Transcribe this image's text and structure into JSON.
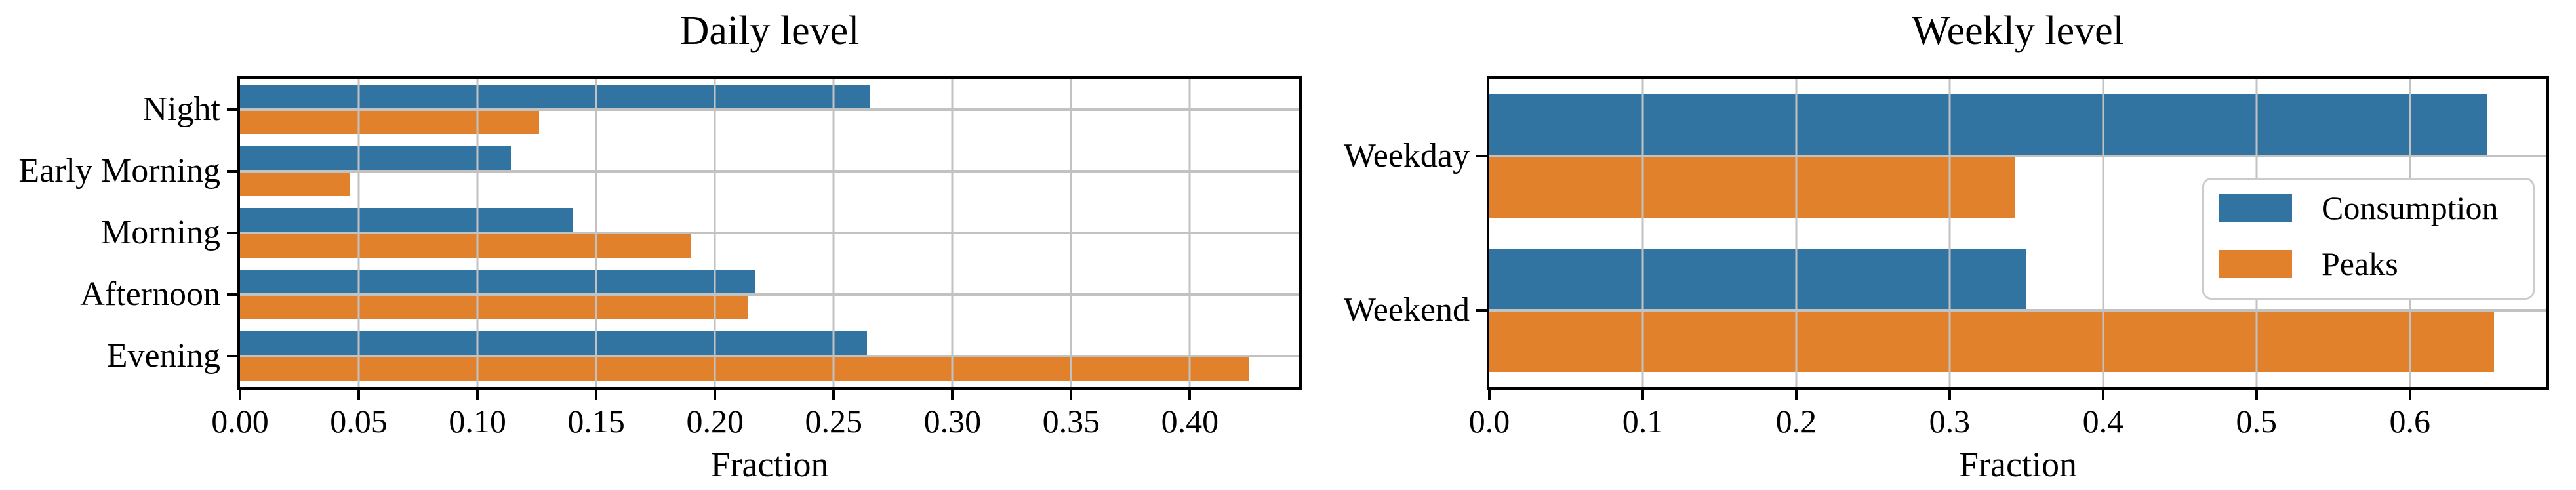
{
  "figure": {
    "background": "#ffffff",
    "text_color": "#000000",
    "grid_color": "#c2c2c2",
    "spine_color": "#000000",
    "legend_border_color": "#cccccc"
  },
  "legend": {
    "position": "lower-right-of-weekly-chart",
    "items": [
      {
        "label": "Consumption",
        "color": "#3274a1"
      },
      {
        "label": "Peaks",
        "color": "#e1812c"
      }
    ]
  },
  "chart_data": [
    {
      "id": "daily",
      "type": "bar",
      "orientation": "horizontal",
      "title": "Daily level",
      "xlabel": "Fraction",
      "categories": [
        "Night",
        "Early Morning",
        "Morning",
        "Afternoon",
        "Evening"
      ],
      "series": [
        {
          "name": "Consumption",
          "color": "#3274a1",
          "values": [
            0.265,
            0.114,
            0.14,
            0.217,
            0.264
          ]
        },
        {
          "name": "Peaks",
          "color": "#e1812c",
          "values": [
            0.126,
            0.046,
            0.19,
            0.214,
            0.425
          ]
        }
      ],
      "xlim": [
        0,
        0.446
      ],
      "xticks": [
        0.0,
        0.05,
        0.1,
        0.15,
        0.2,
        0.25,
        0.3,
        0.35,
        0.4
      ],
      "xtick_labels": [
        "0.00",
        "0.05",
        "0.10",
        "0.15",
        "0.20",
        "0.25",
        "0.30",
        "0.35",
        "0.40"
      ],
      "grid": true,
      "grid_over_bars": true,
      "legend": false
    },
    {
      "id": "weekly",
      "type": "bar",
      "orientation": "horizontal",
      "title": "Weekly level",
      "xlabel": "Fraction",
      "categories": [
        "Weekday",
        "Weekend"
      ],
      "series": [
        {
          "name": "Consumption",
          "color": "#3274a1",
          "values": [
            0.65,
            0.35
          ]
        },
        {
          "name": "Peaks",
          "color": "#e1812c",
          "values": [
            0.343,
            0.655
          ]
        }
      ],
      "xlim": [
        0,
        0.689
      ],
      "xticks": [
        0.0,
        0.1,
        0.2,
        0.3,
        0.4,
        0.5,
        0.6
      ],
      "xtick_labels": [
        "0.0",
        "0.1",
        "0.2",
        "0.3",
        "0.4",
        "0.5",
        "0.6"
      ],
      "grid": true,
      "grid_over_bars": true,
      "legend": true
    }
  ]
}
